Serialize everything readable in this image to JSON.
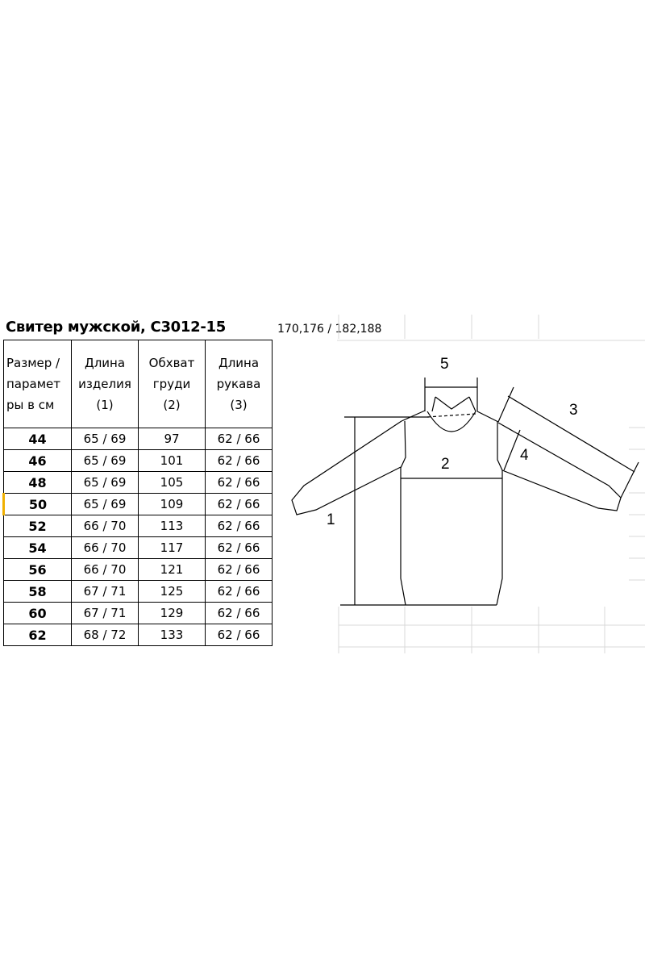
{
  "title": "Свитер мужской, С3012-15",
  "heights": "170,176 / 182,188",
  "table": {
    "headers": [
      [
        "Размер /",
        "парамет",
        "ры в см"
      ],
      [
        "Длина",
        "изделия",
        "(1)"
      ],
      [
        "Обхват",
        "груди",
        "(2)"
      ],
      [
        "Длина",
        "рукава",
        "(3)"
      ]
    ],
    "rows": [
      [
        "44",
        "65 / 69",
        "97",
        "62 / 66"
      ],
      [
        "46",
        "65 / 69",
        "101",
        "62 / 66"
      ],
      [
        "48",
        "65 / 69",
        "105",
        "62 / 66"
      ],
      [
        "50",
        "65 / 69",
        "109",
        "62 / 66"
      ],
      [
        "52",
        "66 / 70",
        "113",
        "62 / 66"
      ],
      [
        "54",
        "66 / 70",
        "117",
        "62 / 66"
      ],
      [
        "56",
        "66 / 70",
        "121",
        "62 / 66"
      ],
      [
        "58",
        "67 / 71",
        "125",
        "62 / 66"
      ],
      [
        "60",
        "67 / 71",
        "129",
        "62 / 66"
      ],
      [
        "62",
        "68 / 72",
        "133",
        "62 / 66"
      ]
    ]
  },
  "diagram": {
    "labels": [
      "1",
      "2",
      "3",
      "4",
      "5"
    ]
  }
}
